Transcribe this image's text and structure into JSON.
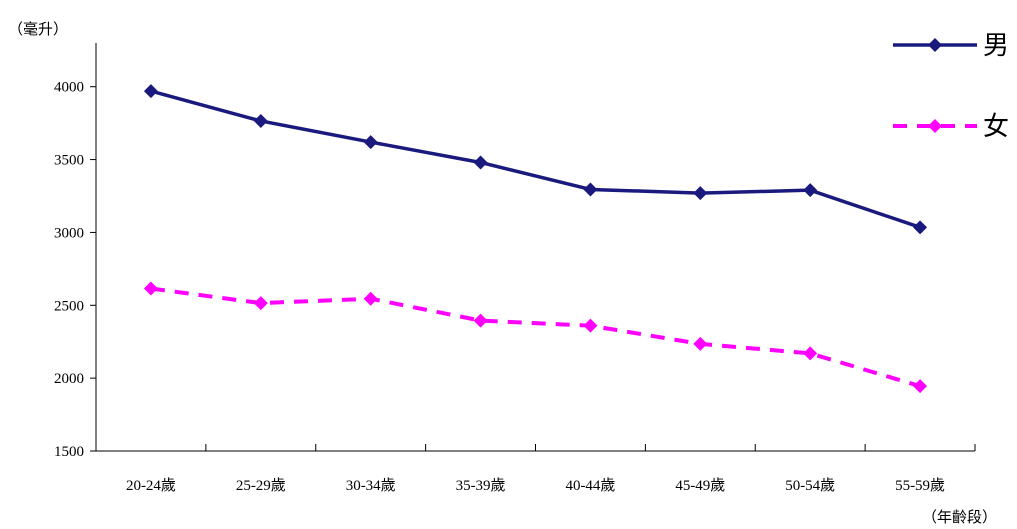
{
  "chart_data": {
    "type": "line",
    "title": "",
    "ylabel": "（毫升）",
    "xlabel": "（年齡段）",
    "categories": [
      "20-24歲",
      "25-29歲",
      "30-34歲",
      "35-39歲",
      "40-44歲",
      "45-49歲",
      "50-54歲",
      "55-59歲"
    ],
    "yticks": [
      1500,
      2000,
      2500,
      3000,
      3500,
      4000
    ],
    "ylim": [
      1500,
      4300
    ],
    "grid": false,
    "legend_position": "top-right",
    "series": [
      {
        "name": "男",
        "color": "#1a1a7e",
        "line_style": "solid",
        "values": [
          3970,
          3765,
          3620,
          3480,
          3295,
          3270,
          3290,
          3035
        ]
      },
      {
        "name": "女",
        "color": "#ff00ff",
        "line_style": "dashed",
        "values": [
          2615,
          2515,
          2545,
          2395,
          2360,
          2235,
          2170,
          1945
        ]
      }
    ]
  }
}
